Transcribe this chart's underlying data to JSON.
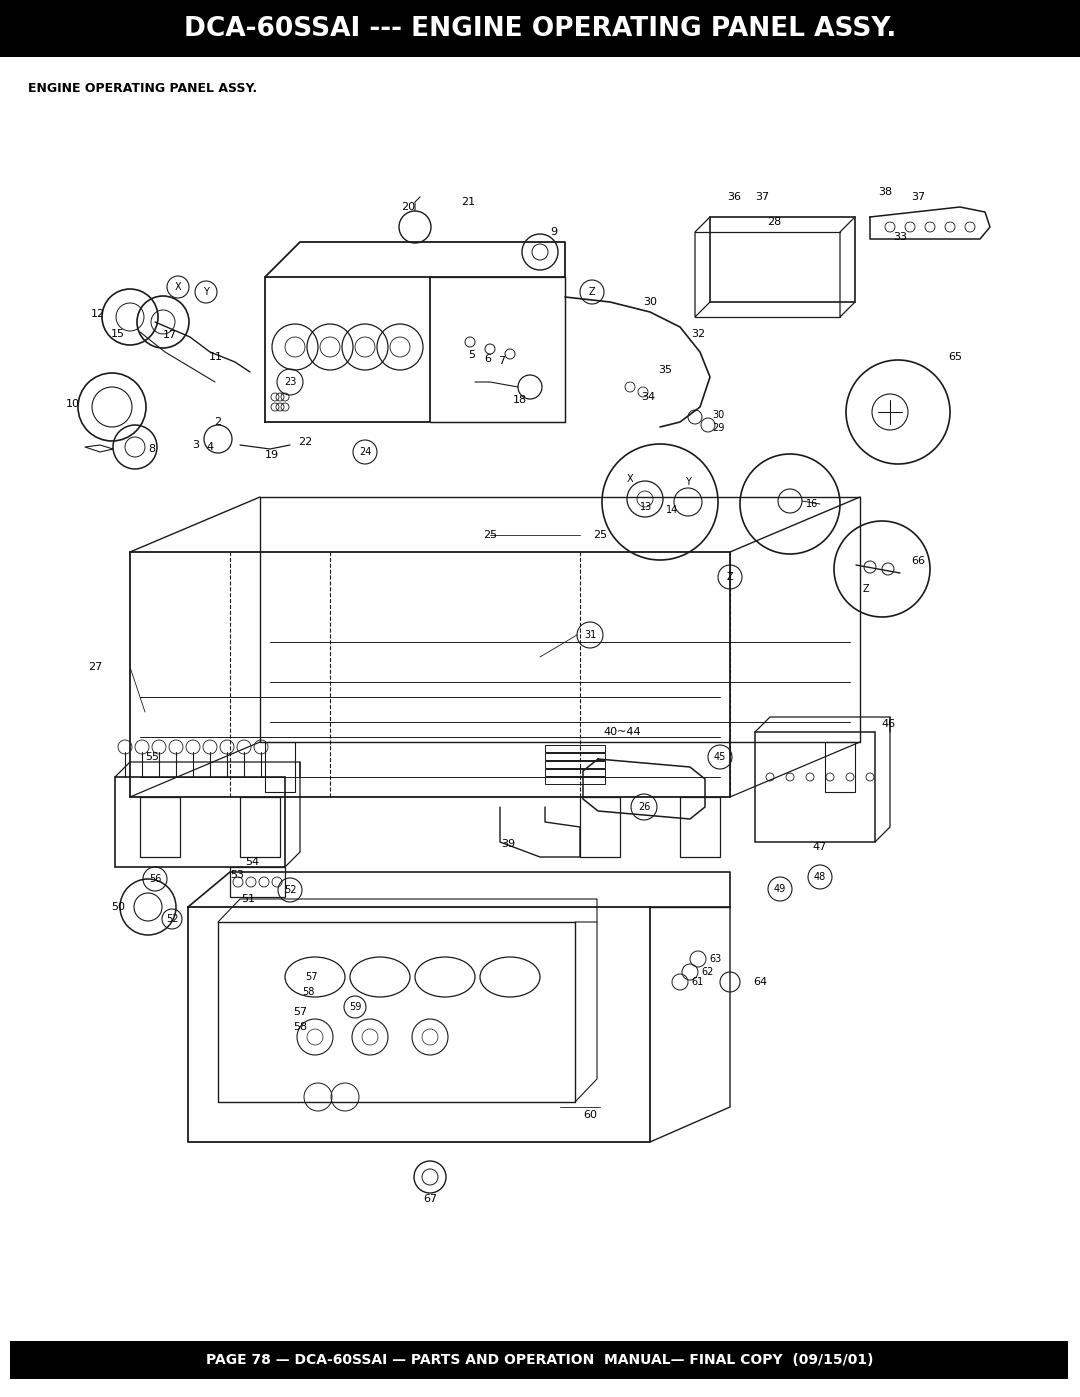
{
  "title": "DCA-60SSAI --- ENGINE OPERATING PANEL ASSY.",
  "subtitle": "ENGINE OPERATING PANEL ASSY.",
  "footer": "PAGE 78 — DCA-60SSAI — PARTS AND OPERATION  MANUAL— FINAL COPY  (09/15/01)",
  "title_bg": "#000000",
  "title_fg": "#ffffff",
  "footer_bg": "#000000",
  "footer_fg": "#ffffff",
  "body_bg": "#ffffff",
  "title_fontsize": 19,
  "subtitle_fontsize": 9,
  "footer_fontsize": 10,
  "fig_width": 10.8,
  "fig_height": 13.97,
  "lc": "#1a1a1a",
  "lw": 0.9
}
